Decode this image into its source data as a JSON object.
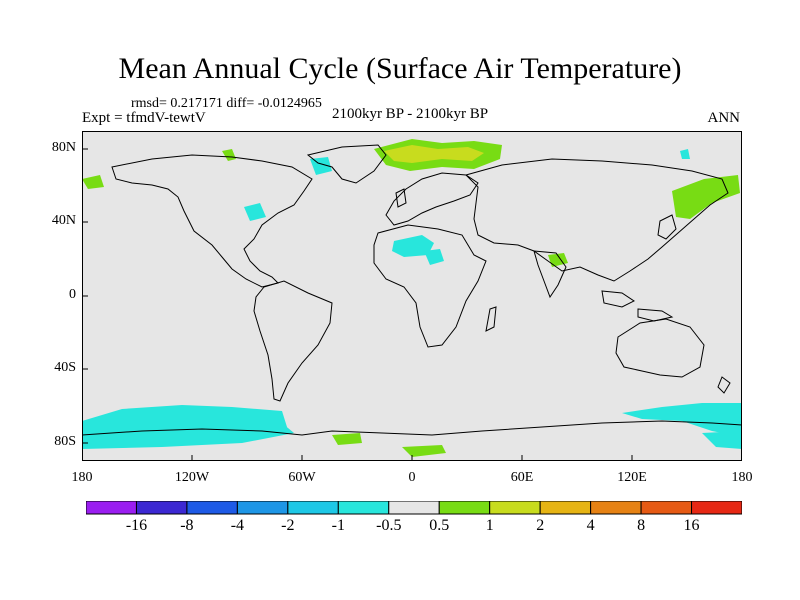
{
  "title": "Mean Annual Cycle (Surface Air Temperature)",
  "stats": "rmsd= 0.217171 diff= -0.0124965",
  "experiment": "Expt = tfmdV-tewtV",
  "period": "2100kyr BP - 2100kyr BP",
  "season": "ANN",
  "lat_ticks": [
    "80N",
    "40N",
    "0",
    "40S",
    "80S"
  ],
  "lon_ticks": [
    "180",
    "120W",
    "60W",
    "0",
    "60E",
    "120E",
    "180"
  ],
  "colorbar": {
    "colors": [
      "#9a1ef0",
      "#3c28d2",
      "#1e5ae6",
      "#1e96e6",
      "#1ec8e6",
      "#28e6dc",
      "#e6e6e6",
      "#78dc14",
      "#c8dc1e",
      "#e6b414",
      "#e68214",
      "#e65a14",
      "#e62814"
    ],
    "labels": [
      "-16",
      "-8",
      "-4",
      "-2",
      "-1",
      "-0.5",
      "0.5",
      "1",
      "2",
      "4",
      "8",
      "16"
    ]
  },
  "colors": {
    "background": "#e6e6e6",
    "negative": "#28e6dc",
    "positive_small": "#78dc14",
    "positive_mid": "#c8dc1e"
  }
}
